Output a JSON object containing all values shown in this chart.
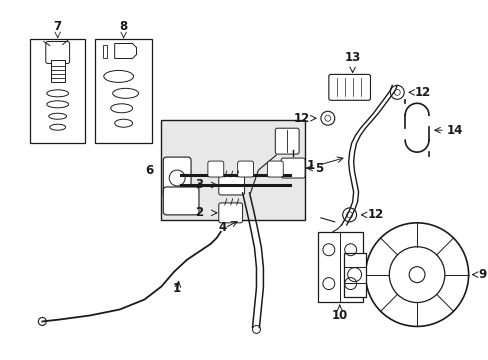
{
  "background_color": "#ffffff",
  "fig_width": 4.89,
  "fig_height": 3.6,
  "dpi": 100,
  "line_color": "#1a1a1a",
  "text_color": "#1a1a1a",
  "gray_fill": "#e8e8e8"
}
